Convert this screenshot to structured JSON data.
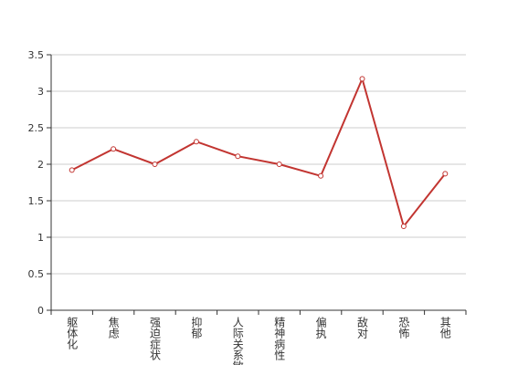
{
  "chart_data": {
    "type": "line",
    "categories": [
      "躯体化",
      "焦虑",
      "强迫症状",
      "抑郁",
      "人际关系敏感",
      "精神病性",
      "偏执",
      "敌对",
      "恐怖",
      "其他"
    ],
    "series": [
      {
        "color": "#c23531",
        "values": [
          1.92,
          2.21,
          2.0,
          2.31,
          2.11,
          2.0,
          1.84,
          3.17,
          1.15,
          1.87
        ]
      }
    ],
    "ylim": [
      0,
      3.5
    ],
    "yticks": [
      0,
      0.5,
      1,
      1.5,
      2,
      2.5,
      3,
      3.5
    ],
    "grid": true
  }
}
